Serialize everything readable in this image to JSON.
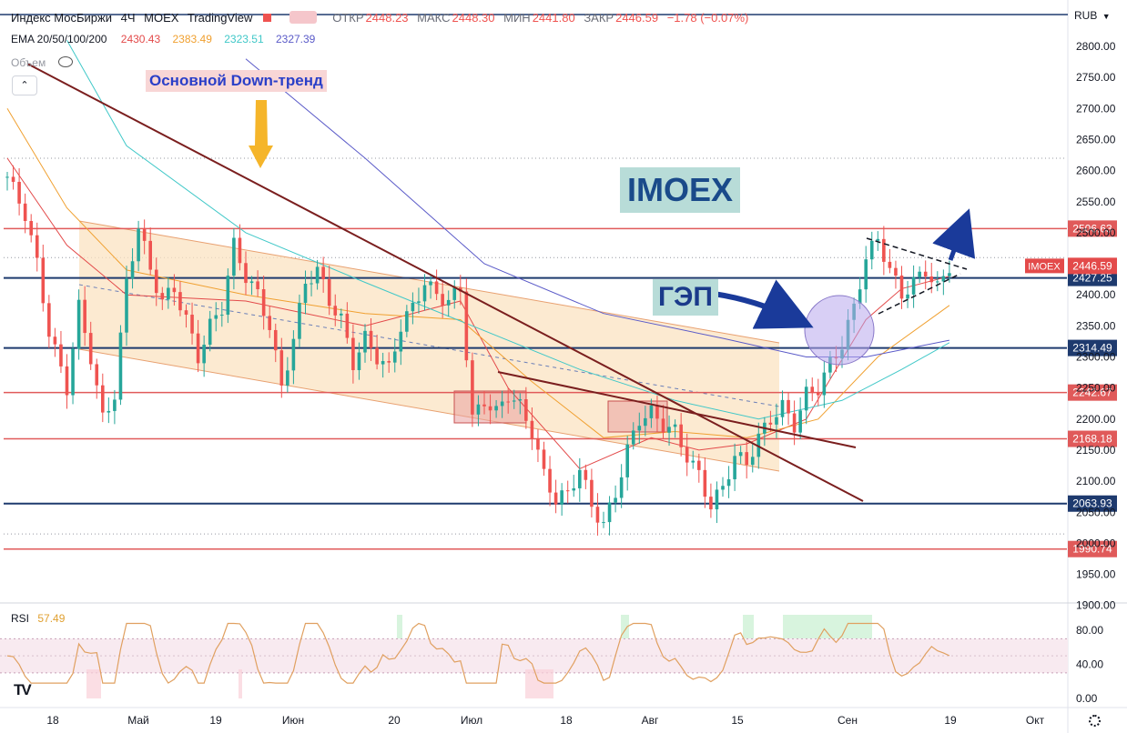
{
  "header": {
    "symbol": "Индекс МосБиржи",
    "interval": "4Ч",
    "exchange": "MOEX",
    "platform": "TradingView",
    "ohlc": {
      "open_label": "ОТКР",
      "open": "2448.23",
      "high_label": "МАКС",
      "high": "2448.30",
      "low_label": "МИН",
      "low": "2441.80",
      "close_label": "ЗАКР",
      "close": "2446.59",
      "change": "−1.78 (−0.07%)"
    }
  },
  "ema": {
    "label": "EMA 20/50/100/200",
    "values": [
      {
        "value": "2430.43",
        "color": "#e34a4a"
      },
      {
        "value": "2383.49",
        "color": "#f0a030"
      },
      {
        "value": "2323.51",
        "color": "#40c8c8"
      },
      {
        "value": "2327.39",
        "color": "#5a5ac8"
      }
    ]
  },
  "volume_label": "Объем",
  "currency": "RUB",
  "annotations": {
    "downtrend": "Основной Down-тренд",
    "imoex": "IMOEX",
    "gap": "ГЭП"
  },
  "price_axis": {
    "ticks": [
      2800,
      2750,
      2700,
      2650,
      2600,
      2550,
      2500,
      2450,
      2400,
      2350,
      2300,
      2250,
      2200,
      2150,
      2100,
      2050,
      2000,
      1950,
      1900
    ],
    "current": {
      "label": "IMOEX",
      "value": "2446.59"
    }
  },
  "chart_data": {
    "type": "candlestick",
    "title": "Индекс МосБиржи · 4Ч · MOEX",
    "ylabel": "RUB",
    "ylim": [
      1900,
      2820
    ],
    "x_ticks": [
      "18",
      "Май",
      "19",
      "Июн",
      "20",
      "Июл",
      "18",
      "Авг",
      "15",
      "Сен",
      "19",
      "Окт"
    ],
    "levels": [
      {
        "value": 2506.63,
        "color": "#e05a5a"
      },
      {
        "value": 2427.25,
        "color": "#1e3a6e"
      },
      {
        "value": 2314.49,
        "color": "#1e3a6e"
      },
      {
        "value": 2242.67,
        "color": "#e05a5a"
      },
      {
        "value": 2168.18,
        "color": "#e05a5a"
      },
      {
        "value": 2063.93,
        "color": "#1e3a6e"
      },
      {
        "value": 1990.74,
        "color": "#e05a5a"
      }
    ],
    "price_path": [
      [
        0,
        2590
      ],
      [
        3,
        2530
      ],
      [
        5,
        2450
      ],
      [
        7,
        2340
      ],
      [
        10,
        2250
      ],
      [
        12,
        2380
      ],
      [
        14,
        2300
      ],
      [
        16,
        2200
      ],
      [
        18,
        2240
      ],
      [
        20,
        2420
      ],
      [
        22,
        2510
      ],
      [
        24,
        2440
      ],
      [
        26,
        2390
      ],
      [
        28,
        2410
      ],
      [
        30,
        2360
      ],
      [
        32,
        2300
      ],
      [
        34,
        2350
      ],
      [
        36,
        2380
      ],
      [
        38,
        2480
      ],
      [
        40,
        2430
      ],
      [
        42,
        2400
      ],
      [
        44,
        2350
      ],
      [
        46,
        2250
      ],
      [
        48,
        2330
      ],
      [
        50,
        2420
      ],
      [
        52,
        2440
      ],
      [
        54,
        2390
      ],
      [
        56,
        2360
      ],
      [
        58,
        2290
      ],
      [
        60,
        2330
      ],
      [
        62,
        2300
      ],
      [
        64,
        2280
      ],
      [
        66,
        2350
      ],
      [
        68,
        2380
      ],
      [
        70,
        2420
      ],
      [
        72,
        2400
      ],
      [
        74,
        2390
      ],
      [
        76,
        2410
      ],
      [
        78,
        2200
      ],
      [
        80,
        2230
      ],
      [
        82,
        2210
      ],
      [
        84,
        2240
      ],
      [
        86,
        2220
      ],
      [
        88,
        2180
      ],
      [
        90,
        2110
      ],
      [
        92,
        2070
      ],
      [
        94,
        2080
      ],
      [
        96,
        2120
      ],
      [
        98,
        2060
      ],
      [
        100,
        2030
      ],
      [
        102,
        2080
      ],
      [
        104,
        2150
      ],
      [
        106,
        2200
      ],
      [
        108,
        2210
      ],
      [
        110,
        2190
      ],
      [
        112,
        2180
      ],
      [
        114,
        2140
      ],
      [
        116,
        2110
      ],
      [
        118,
        2060
      ],
      [
        120,
        2090
      ],
      [
        122,
        2140
      ],
      [
        124,
        2130
      ],
      [
        126,
        2170
      ],
      [
        128,
        2200
      ],
      [
        130,
        2220
      ],
      [
        132,
        2190
      ],
      [
        134,
        2240
      ],
      [
        136,
        2250
      ],
      [
        138,
        2290
      ],
      [
        140,
        2320
      ],
      [
        142,
        2380
      ],
      [
        144,
        2460
      ],
      [
        146,
        2490
      ],
      [
        148,
        2440
      ],
      [
        150,
        2400
      ],
      [
        152,
        2420
      ],
      [
        154,
        2440
      ],
      [
        156,
        2410
      ],
      [
        158,
        2447
      ]
    ],
    "ema_series": [
      {
        "value": "2430.43",
        "color": "#e34a4a",
        "points": [
          [
            0,
            2620
          ],
          [
            10,
            2480
          ],
          [
            20,
            2400
          ],
          [
            40,
            2390
          ],
          [
            60,
            2350
          ],
          [
            76,
            2390
          ],
          [
            84,
            2250
          ],
          [
            96,
            2120
          ],
          [
            108,
            2170
          ],
          [
            116,
            2150
          ],
          [
            124,
            2160
          ],
          [
            134,
            2200
          ],
          [
            144,
            2360
          ],
          [
            150,
            2410
          ],
          [
            158,
            2430
          ]
        ]
      },
      {
        "value": "2383.49",
        "color": "#f0a030",
        "points": [
          [
            0,
            2700
          ],
          [
            10,
            2540
          ],
          [
            20,
            2440
          ],
          [
            40,
            2400
          ],
          [
            60,
            2370
          ],
          [
            76,
            2360
          ],
          [
            88,
            2260
          ],
          [
            100,
            2170
          ],
          [
            112,
            2180
          ],
          [
            124,
            2170
          ],
          [
            136,
            2200
          ],
          [
            146,
            2300
          ],
          [
            158,
            2383
          ]
        ]
      },
      {
        "value": "2323.51",
        "color": "#40c8c8",
        "points": [
          [
            10,
            2810
          ],
          [
            20,
            2640
          ],
          [
            40,
            2500
          ],
          [
            60,
            2420
          ],
          [
            78,
            2350
          ],
          [
            96,
            2280
          ],
          [
            112,
            2230
          ],
          [
            126,
            2200
          ],
          [
            140,
            2230
          ],
          [
            150,
            2280
          ],
          [
            158,
            2323
          ]
        ]
      },
      {
        "value": "2327.39",
        "color": "#5a5ac8",
        "points": [
          [
            40,
            2780
          ],
          [
            60,
            2620
          ],
          [
            80,
            2450
          ],
          [
            100,
            2370
          ],
          [
            120,
            2330
          ],
          [
            134,
            2300
          ],
          [
            144,
            2300
          ],
          [
            158,
            2327
          ]
        ]
      }
    ],
    "rsi": {
      "label": "RSI",
      "value": "57.49",
      "ticks": [
        "80.00",
        "40.00",
        "0.00"
      ],
      "ylim": [
        0,
        100
      ],
      "upper": 70,
      "lower": 30
    }
  }
}
